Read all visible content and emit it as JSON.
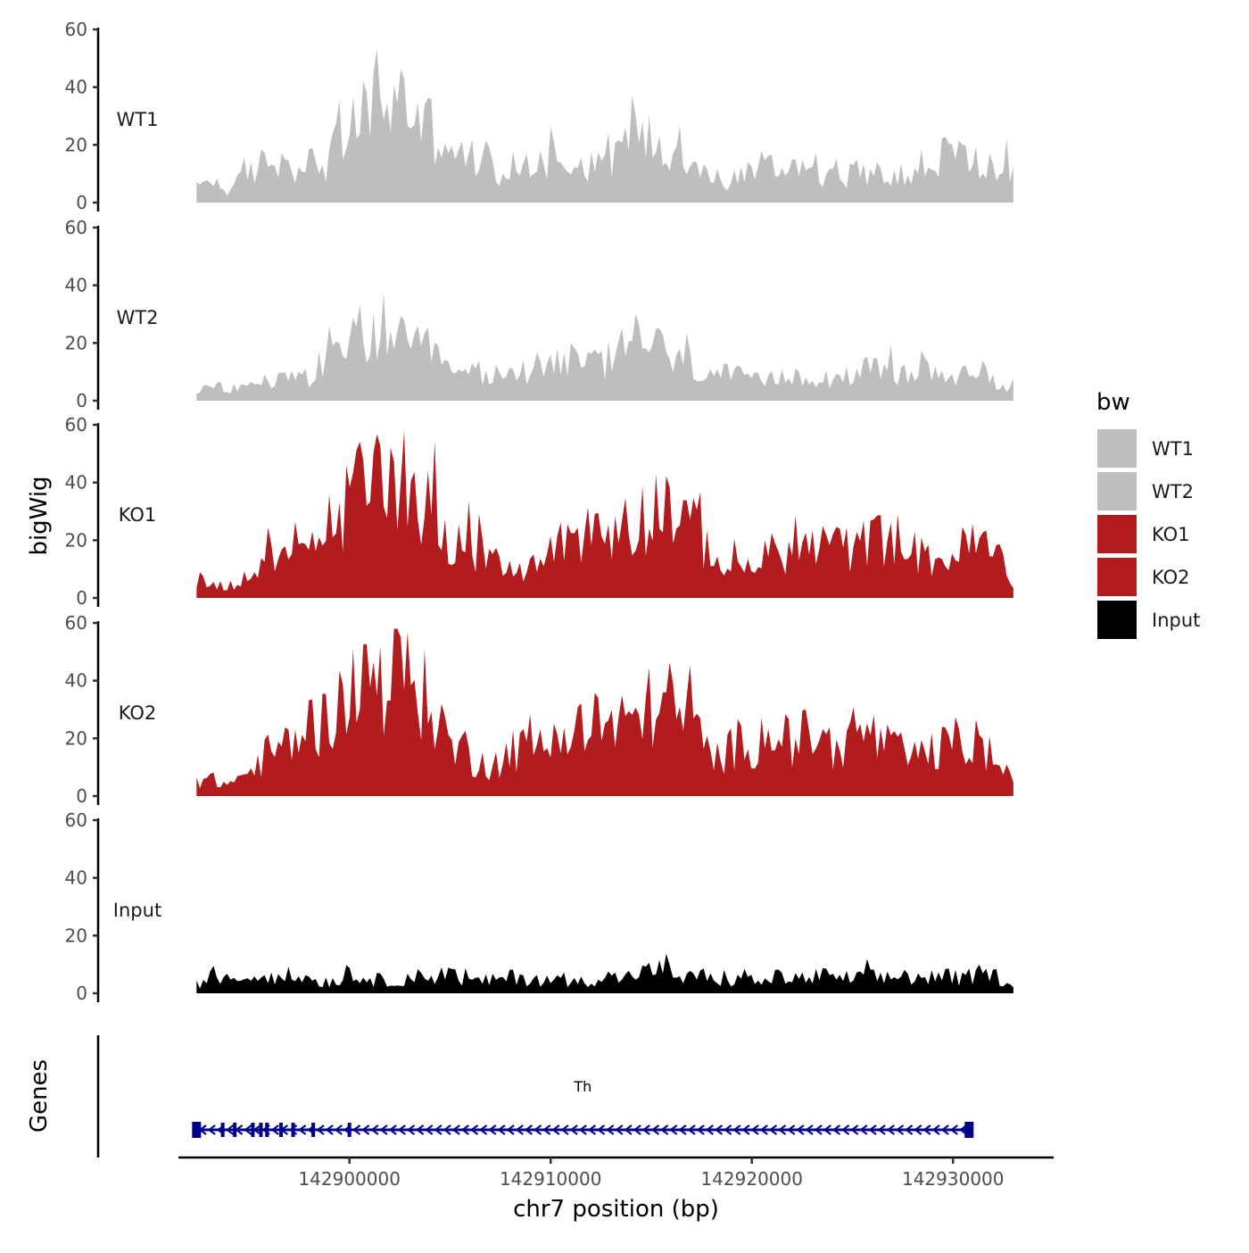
{
  "chart_data": {
    "type": "area",
    "y_title": "bigWig",
    "x_title": "chr7 position (bp)",
    "xlim": [
      142891500,
      142935000
    ],
    "data_range": [
      142892400,
      142933000
    ],
    "x_ticks": [
      142900000,
      142910000,
      142920000,
      142930000
    ],
    "x_tick_labels": [
      "142900000",
      "142910000",
      "142920000",
      "142930000"
    ],
    "ylim": [
      0,
      60
    ],
    "y_ticks": [
      0,
      20,
      40,
      60
    ],
    "y_tick_labels": [
      "0",
      "20",
      "40",
      "60"
    ],
    "legend": {
      "title": "bw",
      "position": "right",
      "entries": [
        {
          "label": "WT1",
          "color": "#bebebe"
        },
        {
          "label": "WT2",
          "color": "#bebebe"
        },
        {
          "label": "KO1",
          "color": "#b21c1f"
        },
        {
          "label": "KO2",
          "color": "#b21c1f"
        },
        {
          "label": "Input",
          "color": "#000000"
        }
      ]
    },
    "tracks": [
      {
        "name": "WT1",
        "color": "#bebebe",
        "knots": [
          [
            142892400,
            5
          ],
          [
            142893000,
            8
          ],
          [
            142894000,
            4
          ],
          [
            142895000,
            10
          ],
          [
            142896000,
            15
          ],
          [
            142897000,
            13
          ],
          [
            142898000,
            14
          ],
          [
            142898700,
            12
          ],
          [
            142899500,
            20
          ],
          [
            142900500,
            27
          ],
          [
            142901200,
            40
          ],
          [
            142901800,
            34
          ],
          [
            142902500,
            36
          ],
          [
            142903200,
            30
          ],
          [
            142904000,
            26
          ],
          [
            142905000,
            20
          ],
          [
            142905800,
            14
          ],
          [
            142906500,
            17
          ],
          [
            142907500,
            10
          ],
          [
            142908500,
            13
          ],
          [
            142909500,
            15
          ],
          [
            142910500,
            16
          ],
          [
            142911500,
            13
          ],
          [
            142912500,
            16
          ],
          [
            142913500,
            18
          ],
          [
            142914300,
            30
          ],
          [
            142915000,
            20
          ],
          [
            142915800,
            18
          ],
          [
            142916700,
            19
          ],
          [
            142917300,
            15
          ],
          [
            142918000,
            7
          ],
          [
            142918700,
            6
          ],
          [
            142919500,
            10
          ],
          [
            142920500,
            13
          ],
          [
            142921500,
            11
          ],
          [
            142922500,
            14
          ],
          [
            142923500,
            11
          ],
          [
            142924500,
            10
          ],
          [
            142925500,
            9
          ],
          [
            142926500,
            13
          ],
          [
            142927500,
            9
          ],
          [
            142928500,
            10
          ],
          [
            142929500,
            17
          ],
          [
            142930500,
            16
          ],
          [
            142931500,
            13
          ],
          [
            142932500,
            12
          ],
          [
            142933000,
            9
          ]
        ]
      },
      {
        "name": "WT2",
        "color": "#bebebe",
        "knots": [
          [
            142892400,
            2
          ],
          [
            142893000,
            5
          ],
          [
            142894000,
            4
          ],
          [
            142895000,
            5
          ],
          [
            142896000,
            7
          ],
          [
            142897000,
            8
          ],
          [
            142898000,
            9
          ],
          [
            142899000,
            13
          ],
          [
            142900000,
            17
          ],
          [
            142900500,
            25
          ],
          [
            142901200,
            22
          ],
          [
            142901800,
            26
          ],
          [
            142902500,
            20
          ],
          [
            142903200,
            18
          ],
          [
            142904000,
            15
          ],
          [
            142904800,
            12
          ],
          [
            142905500,
            8
          ],
          [
            142906500,
            10
          ],
          [
            142907500,
            8
          ],
          [
            142908500,
            10
          ],
          [
            142909500,
            13
          ],
          [
            142910500,
            15
          ],
          [
            142911500,
            12
          ],
          [
            142912500,
            13
          ],
          [
            142913300,
            13
          ],
          [
            142914000,
            24
          ],
          [
            142914800,
            21
          ],
          [
            142915500,
            17
          ],
          [
            142916500,
            13
          ],
          [
            142917500,
            11
          ],
          [
            142918500,
            9
          ],
          [
            142919500,
            8
          ],
          [
            142920500,
            6
          ],
          [
            142921500,
            8
          ],
          [
            142922500,
            10
          ],
          [
            142923500,
            8
          ],
          [
            142924500,
            9
          ],
          [
            142925500,
            10
          ],
          [
            142926500,
            11
          ],
          [
            142927500,
            9
          ],
          [
            142928500,
            10
          ],
          [
            142929500,
            10
          ],
          [
            142930500,
            8
          ],
          [
            142931500,
            10
          ],
          [
            142932500,
            5
          ],
          [
            142933000,
            6
          ]
        ]
      },
      {
        "name": "KO1",
        "color": "#b21c1f",
        "knots": [
          [
            142892400,
            7
          ],
          [
            142893000,
            5
          ],
          [
            142894000,
            4
          ],
          [
            142895000,
            8
          ],
          [
            142896000,
            13
          ],
          [
            142897000,
            12
          ],
          [
            142898000,
            19
          ],
          [
            142899000,
            25
          ],
          [
            142900000,
            33
          ],
          [
            142900700,
            40
          ],
          [
            142901200,
            44
          ],
          [
            142902000,
            46
          ],
          [
            142902800,
            43
          ],
          [
            142903500,
            36
          ],
          [
            142904300,
            28
          ],
          [
            142905000,
            22
          ],
          [
            142906000,
            18
          ],
          [
            142907000,
            11
          ],
          [
            142908000,
            9
          ],
          [
            142909000,
            11
          ],
          [
            142910000,
            15
          ],
          [
            142910700,
            23
          ],
          [
            142911500,
            22
          ],
          [
            142912300,
            23
          ],
          [
            142913000,
            21
          ],
          [
            142914000,
            26
          ],
          [
            142914800,
            29
          ],
          [
            142915700,
            35
          ],
          [
            142916500,
            27
          ],
          [
            142917300,
            22
          ],
          [
            142918000,
            15
          ],
          [
            142918800,
            10
          ],
          [
            142919800,
            11
          ],
          [
            142920800,
            15
          ],
          [
            142921800,
            16
          ],
          [
            142922800,
            17
          ],
          [
            142923800,
            18
          ],
          [
            142924800,
            16
          ],
          [
            142925800,
            19
          ],
          [
            142926800,
            22
          ],
          [
            142927500,
            19
          ],
          [
            142928500,
            14
          ],
          [
            142929500,
            13
          ],
          [
            142930500,
            17
          ],
          [
            142931500,
            18
          ],
          [
            142932500,
            13
          ],
          [
            142933000,
            4
          ]
        ]
      },
      {
        "name": "KO2",
        "color": "#b21c1f",
        "knots": [
          [
            142892400,
            5
          ],
          [
            142893000,
            6
          ],
          [
            142894000,
            4
          ],
          [
            142895000,
            8
          ],
          [
            142896000,
            15
          ],
          [
            142897000,
            18
          ],
          [
            142898000,
            24
          ],
          [
            142899000,
            26
          ],
          [
            142900000,
            36
          ],
          [
            142900700,
            42
          ],
          [
            142901300,
            38
          ],
          [
            142902000,
            43
          ],
          [
            142902800,
            45
          ],
          [
            142903500,
            36
          ],
          [
            142904300,
            30
          ],
          [
            142905000,
            18
          ],
          [
            142906000,
            13
          ],
          [
            142907000,
            10
          ],
          [
            142908000,
            15
          ],
          [
            142909000,
            17
          ],
          [
            142910000,
            19
          ],
          [
            142911000,
            24
          ],
          [
            142912000,
            22
          ],
          [
            142913000,
            24
          ],
          [
            142914000,
            26
          ],
          [
            142915000,
            31
          ],
          [
            142915800,
            33
          ],
          [
            142916500,
            28
          ],
          [
            142917300,
            22
          ],
          [
            142918000,
            13
          ],
          [
            142919000,
            16
          ],
          [
            142920000,
            18
          ],
          [
            142921000,
            24
          ],
          [
            142922000,
            18
          ],
          [
            142923000,
            22
          ],
          [
            142924000,
            17
          ],
          [
            142925000,
            19
          ],
          [
            142926000,
            21
          ],
          [
            142927000,
            16
          ],
          [
            142928000,
            13
          ],
          [
            142929000,
            15
          ],
          [
            142930000,
            19
          ],
          [
            142931000,
            17
          ],
          [
            142932000,
            14
          ],
          [
            142933000,
            4
          ]
        ]
      },
      {
        "name": "Input",
        "color": "#000000",
        "knots": [
          [
            142892400,
            3
          ],
          [
            142893000,
            5
          ],
          [
            142894000,
            6
          ],
          [
            142895000,
            5
          ],
          [
            142896000,
            7
          ],
          [
            142897000,
            6
          ],
          [
            142898000,
            5
          ],
          [
            142899000,
            4
          ],
          [
            142900000,
            6
          ],
          [
            142901000,
            5
          ],
          [
            142902000,
            4
          ],
          [
            142903000,
            6
          ],
          [
            142904000,
            5
          ],
          [
            142904600,
            8
          ],
          [
            142905500,
            5
          ],
          [
            142906500,
            4
          ],
          [
            142907500,
            5
          ],
          [
            142908500,
            6
          ],
          [
            142909500,
            4
          ],
          [
            142910500,
            5
          ],
          [
            142911500,
            4
          ],
          [
            142912500,
            6
          ],
          [
            142913500,
            5
          ],
          [
            142914500,
            7
          ],
          [
            142915500,
            8
          ],
          [
            142916500,
            5
          ],
          [
            142917500,
            6
          ],
          [
            142918500,
            4
          ],
          [
            142919500,
            5
          ],
          [
            142920500,
            4
          ],
          [
            142921500,
            6
          ],
          [
            142922500,
            5
          ],
          [
            142923500,
            6
          ],
          [
            142924500,
            5
          ],
          [
            142925500,
            6
          ],
          [
            142926500,
            5
          ],
          [
            142927500,
            6
          ],
          [
            142928500,
            5
          ],
          [
            142929500,
            6
          ],
          [
            142930500,
            5
          ],
          [
            142931500,
            7
          ],
          [
            142932500,
            5
          ],
          [
            142933000,
            4
          ]
        ]
      }
    ],
    "genes_track": {
      "title": "Genes",
      "gene_name": "Th",
      "strand": "-",
      "color": "#00008b",
      "start": 142892400,
      "end": 142930800,
      "exons": [
        142892400,
        142893700,
        142894300,
        142895200,
        142895600,
        142895900,
        142896600,
        142897200,
        142898200,
        142900000,
        142930800
      ]
    }
  }
}
